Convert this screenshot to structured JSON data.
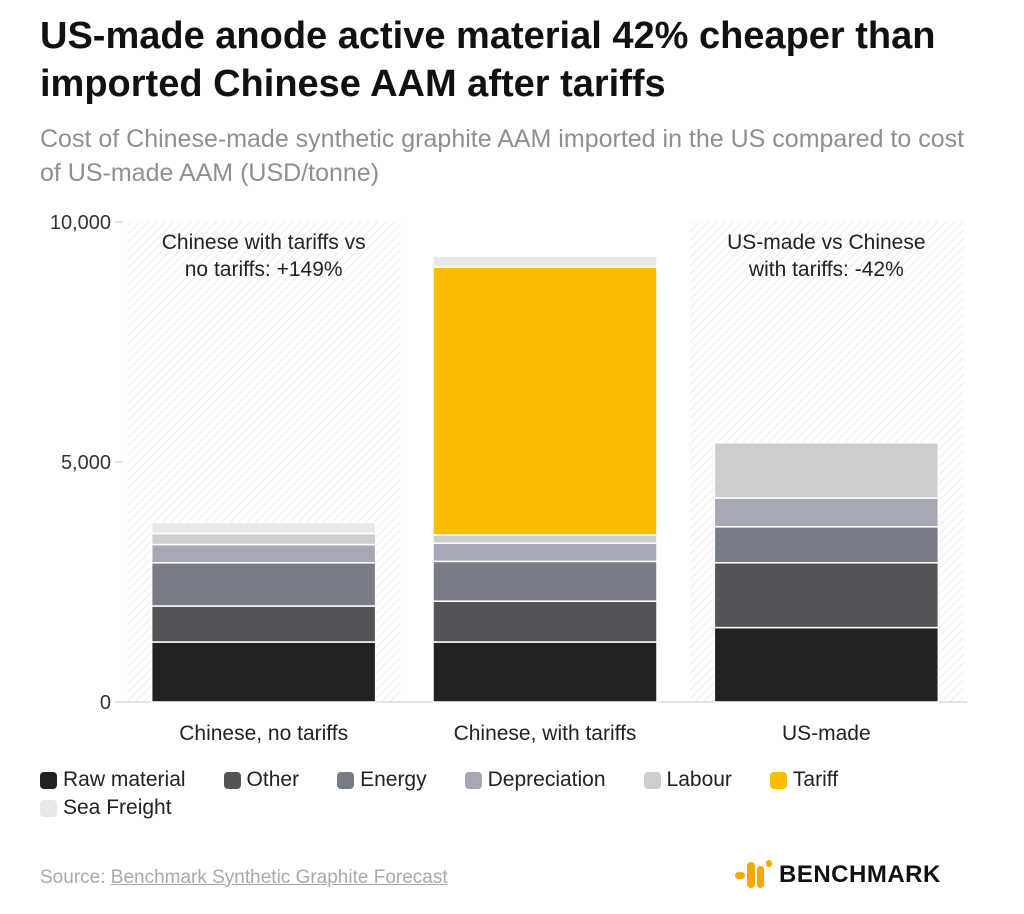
{
  "title": "US-made anode active material 42% cheaper than imported Chinese AAM after tariffs",
  "subtitle": "Cost of Chinese-made synthetic graphite AAM imported in the US compared to cost of US-made AAM (USD/tonne)",
  "source_prefix": "Source: ",
  "source_link": "Benchmark Synthetic Graphite Forecast",
  "logo_text": "BENCHMARK",
  "chart_data": {
    "type": "bar",
    "stacked": true,
    "categories": [
      "Chinese, no tariffs",
      "Chinese, with tariffs",
      "US-made"
    ],
    "series": [
      {
        "name": "Raw material",
        "color": "#222225",
        "values": [
          1250,
          1250,
          1550
        ]
      },
      {
        "name": "Other",
        "color": "#535358",
        "values": [
          750,
          850,
          1350
        ]
      },
      {
        "name": "Energy",
        "color": "#787c86",
        "values": [
          900,
          830,
          750
        ]
      },
      {
        "name": "Depreciation",
        "color": "#a6a9b5",
        "values": [
          380,
          380,
          600
        ]
      },
      {
        "name": "Labour",
        "color": "#cecece",
        "values": [
          230,
          170,
          1150
        ]
      },
      {
        "name": "Tariff",
        "color": "#fbbd00",
        "values": [
          0,
          5580,
          0
        ]
      },
      {
        "name": "Sea Freight",
        "color": "#e8e8e8",
        "values": [
          230,
          230,
          0
        ]
      }
    ],
    "yticks": [
      0,
      5000,
      10000
    ],
    "ytick_labels": [
      "0",
      "5,000",
      "10,000"
    ],
    "ylim": [
      0,
      10000
    ],
    "annotations": [
      {
        "category": "Chinese, no tariffs",
        "lines": [
          "Chinese with tariffs vs",
          "no tariffs: +149%"
        ]
      },
      {
        "category": "US-made",
        "lines": [
          "US-made vs Chinese",
          "with tariffs: -42%"
        ]
      }
    ],
    "hatched_categories": [
      "Chinese, no tariffs",
      "US-made"
    ],
    "xlabel": "",
    "ylabel": ""
  }
}
